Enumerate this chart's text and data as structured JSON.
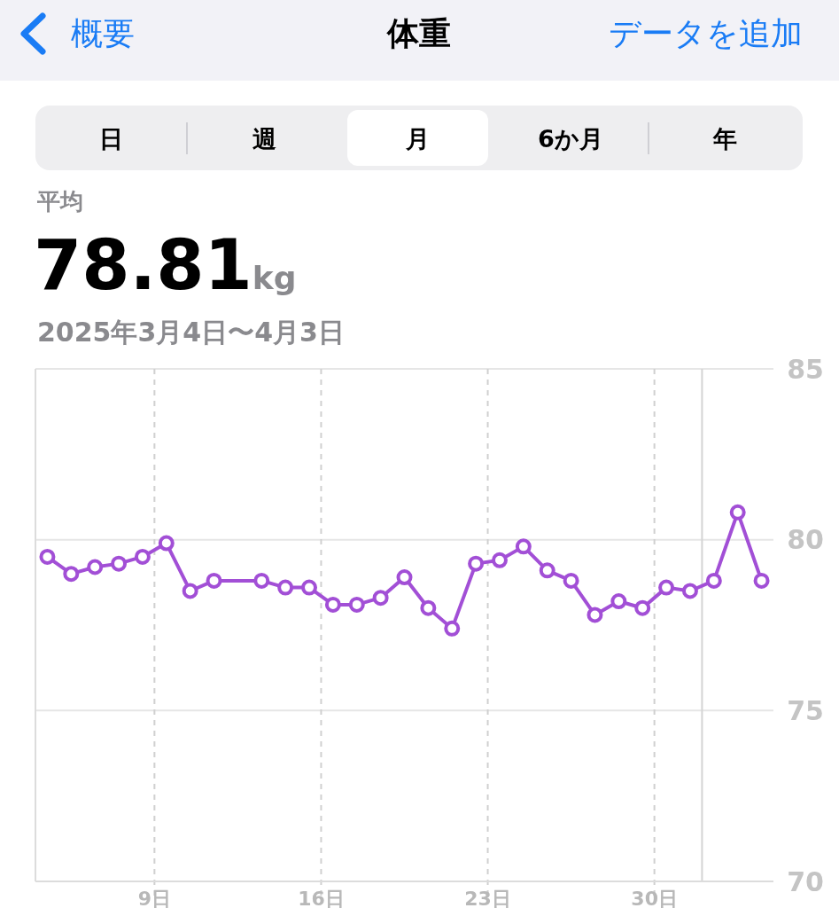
{
  "chart_data": {
    "type": "line",
    "title": "体重",
    "subtitle": "2025年3月4日〜4月3日",
    "annotations": [
      "概要",
      "データを追加",
      "日",
      "週",
      "月",
      "6か月",
      "年",
      "平均",
      "78.81",
      "kg"
    ],
    "x": [
      "2025-03-04T12:00",
      "2025-03-05T12:00",
      "2025-03-06T12:00",
      "2025-03-07T12:00",
      "2025-03-08T12:00",
      "2025-03-09T12:00",
      "2025-03-10T12:00",
      "2025-03-11T12:00",
      "2025-03-13T12:00",
      "2025-03-14T12:00",
      "2025-03-15T12:00",
      "2025-03-16T12:00",
      "2025-03-17T12:00",
      "2025-03-18T12:00",
      "2025-03-19T12:00",
      "2025-03-20T12:00",
      "2025-03-21T12:00",
      "2025-03-22T12:00",
      "2025-03-23T12:00",
      "2025-03-24T12:00",
      "2025-03-25T12:00",
      "2025-03-26T12:00",
      "2025-03-27T12:00",
      "2025-03-28T12:00",
      "2025-03-29T12:00",
      "2025-03-30T12:00",
      "2025-03-31T12:00",
      "2025-04-01T12:00",
      "2025-04-02T12:00",
      "2025-04-03T12:00"
    ],
    "series": [
      {
        "color": "#a24fd6",
        "values": [
          79.5,
          79.0,
          79.2,
          79.3,
          79.5,
          79.9,
          78.5,
          78.8,
          78.8,
          78.6,
          78.6,
          78.1,
          78.1,
          78.3,
          78.9,
          78.0,
          77.4,
          79.3,
          79.4,
          79.8,
          79.1,
          78.8,
          77.8,
          78.2,
          78.0,
          78.6,
          78.5,
          78.8,
          80.8,
          78.8
        ]
      }
    ],
    "xlim": [
      "2025-03-04",
      "2025-04-04"
    ],
    "xticks": [
      {
        "value": "2025-03-09",
        "label": "9日"
      },
      {
        "value": "2025-03-16",
        "label": "16日"
      },
      {
        "value": "2025-03-23",
        "label": "23日"
      },
      {
        "value": "2025-03-30",
        "label": "30日"
      }
    ],
    "ylim": [
      70,
      85
    ],
    "yticks": [
      70,
      75,
      80,
      85
    ],
    "ref_lines": [
      {
        "axis": "x",
        "value": "2025-04-01",
        "label": null,
        "color": "#d4d4d4",
        "line_style": "solid"
      }
    ],
    "grid": true,
    "marker": "circle",
    "line_style": "solid"
  }
}
